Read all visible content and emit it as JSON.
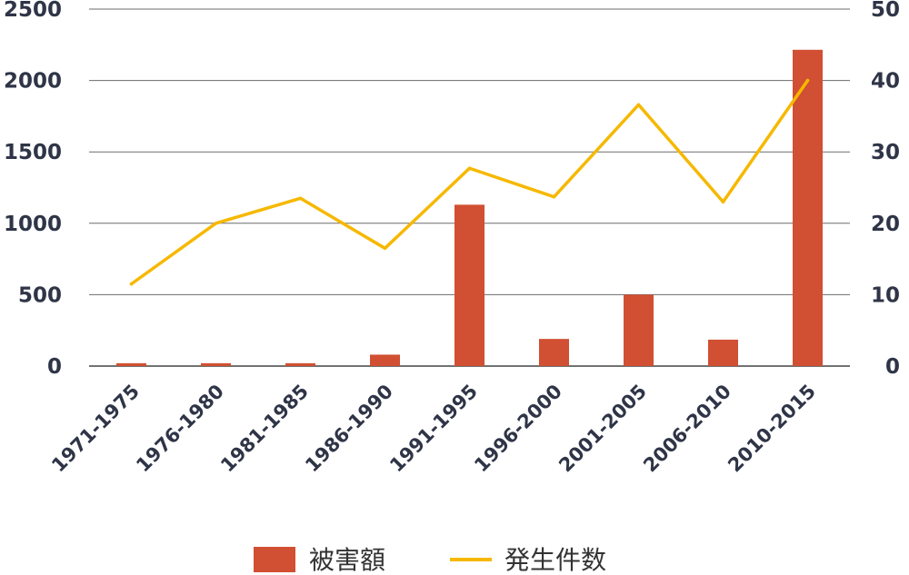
{
  "chart_data": {
    "type": "bar+line",
    "categories": [
      "1971-1975",
      "1976-1980",
      "1981-1985",
      "1986-1990",
      "1991-1995",
      "1996-2000",
      "2001-2005",
      "2006-2010",
      "2010-2015"
    ],
    "series": [
      {
        "name": "被害額",
        "type": "bar",
        "axis": "left",
        "color": "#d14f32",
        "values": [
          20,
          20,
          20,
          80,
          1130,
          190,
          500,
          185,
          2215
        ]
      },
      {
        "name": "発生件数",
        "type": "line",
        "axis": "right",
        "color": "#f6b800",
        "values": [
          11.5,
          20,
          23.5,
          16.5,
          27.7,
          23.7,
          36.6,
          23,
          40
        ]
      }
    ],
    "y_left": {
      "ylim": [
        0,
        2500
      ],
      "ticks": [
        "0",
        "500",
        "1000",
        "1500",
        "2000",
        "2500"
      ]
    },
    "y_right": {
      "ylim": [
        0,
        50
      ],
      "ticks": [
        "0",
        "10",
        "20",
        "30",
        "40",
        "50"
      ]
    },
    "grid": true,
    "legend": "bottom"
  }
}
